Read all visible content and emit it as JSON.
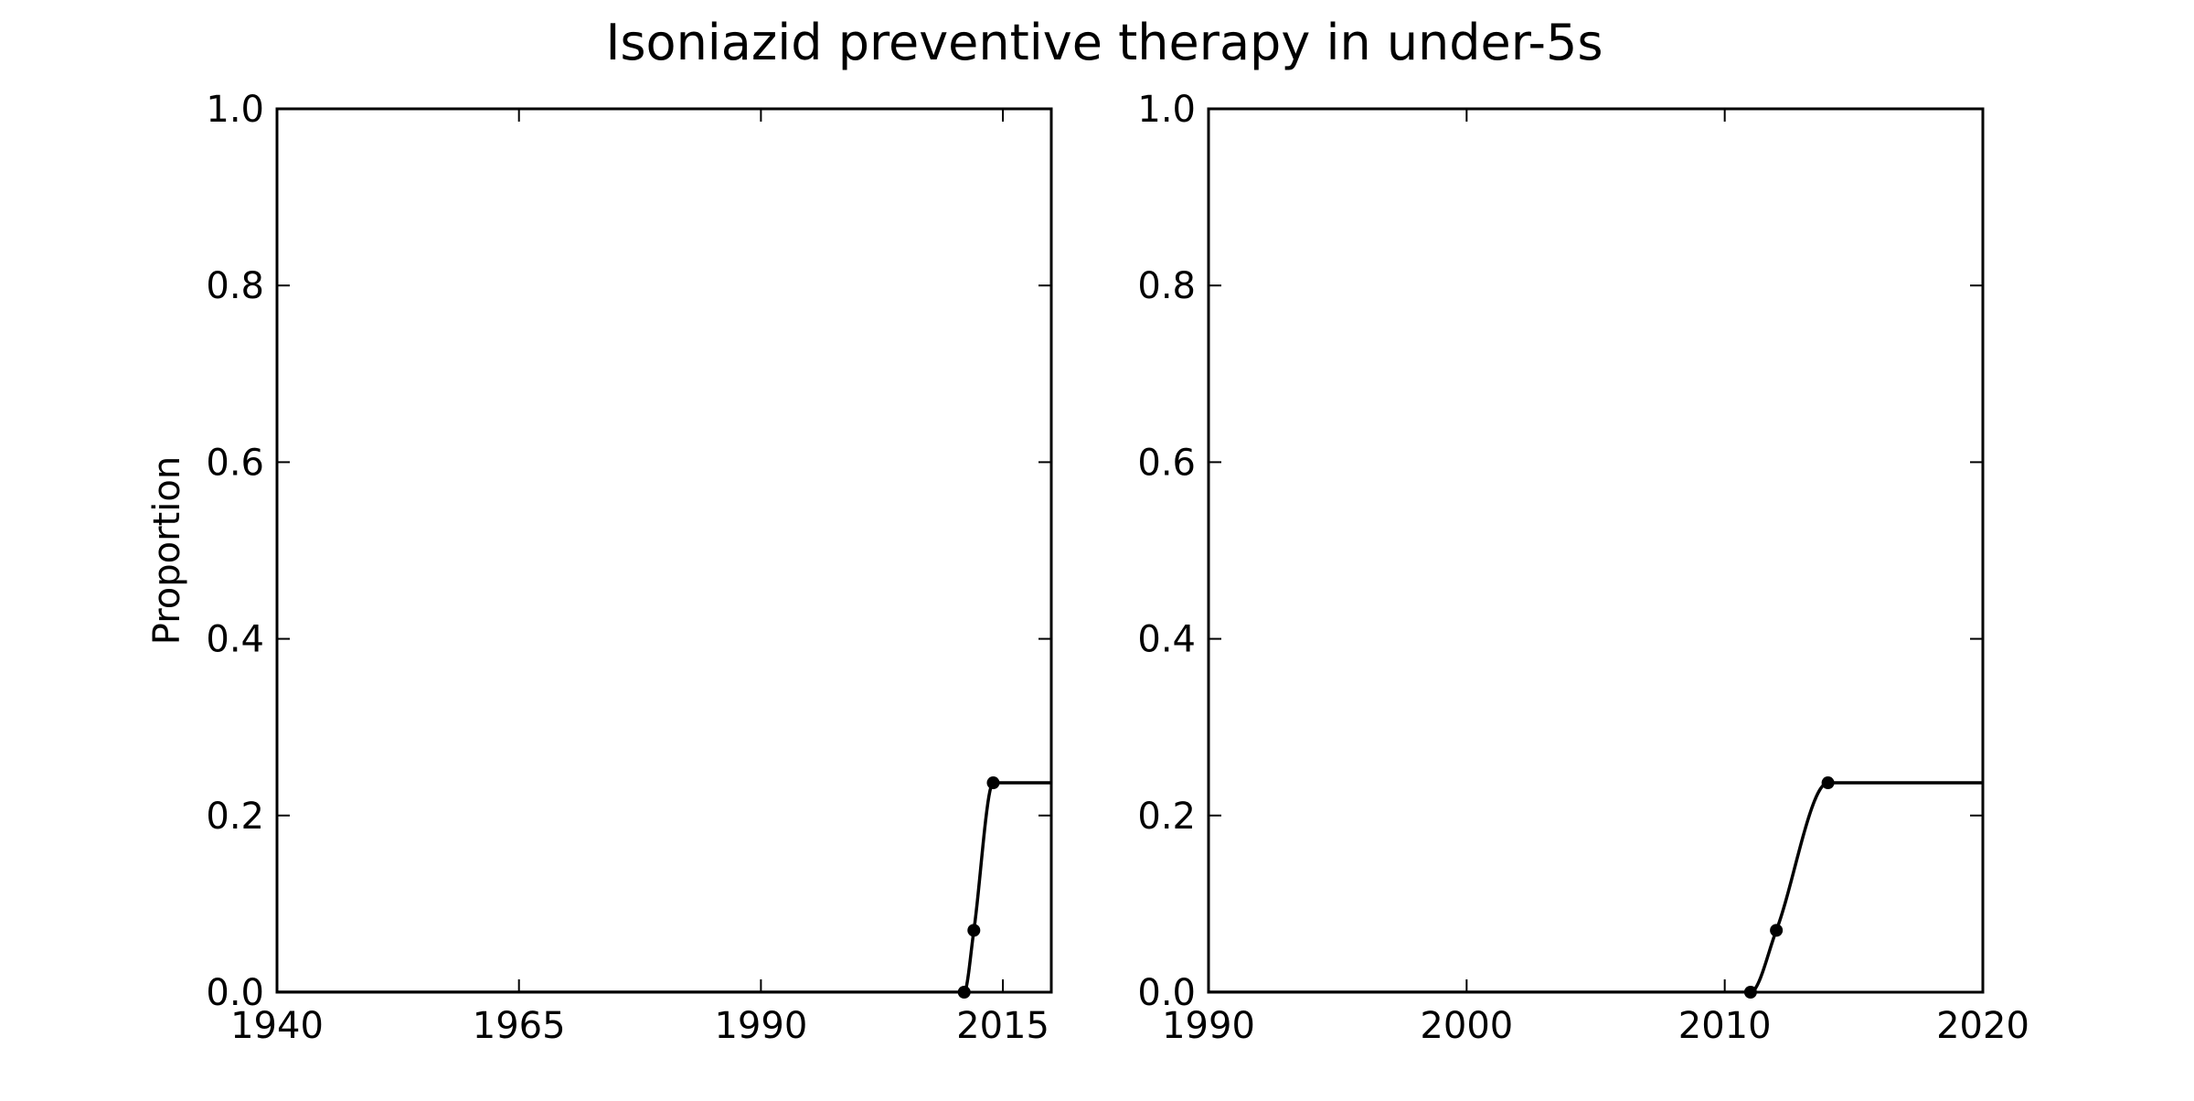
{
  "title": "Isoniazid preventive therapy in under-5s",
  "colors": {
    "line": "#000000",
    "axes": "#000000",
    "background": "#ffffff"
  },
  "chart_data": [
    {
      "type": "line",
      "title": "",
      "xlabel": "",
      "ylabel": "Proportion",
      "xlim": [
        1940,
        2020
      ],
      "ylim": [
        0,
        1
      ],
      "xticks": [
        "1940",
        "1965",
        "1990",
        "2015"
      ],
      "xtick_values": [
        1940,
        1965,
        1990,
        2015
      ],
      "yticks": [
        "0.0",
        "0.2",
        "0.4",
        "0.6",
        "0.8",
        "1.0"
      ],
      "ytick_values": [
        0,
        0.2,
        0.4,
        0.6,
        0.8,
        1.0
      ],
      "grid": false,
      "series": [
        {
          "points": [
            [
              2011,
              0.0
            ],
            [
              2012,
              0.07
            ],
            [
              2014,
              0.237
            ]
          ],
          "curve": [
            [
              1940,
              0.0
            ],
            [
              2011,
              0.0
            ],
            [
              2012,
              0.07
            ],
            [
              2014,
              0.237
            ],
            [
              2020,
              0.237
            ]
          ]
        }
      ]
    },
    {
      "type": "line",
      "title": "",
      "xlabel": "",
      "ylabel": "",
      "xlim": [
        1990,
        2020
      ],
      "ylim": [
        0,
        1
      ],
      "xticks": [
        "1990",
        "2000",
        "2010",
        "2020"
      ],
      "xtick_values": [
        1990,
        2000,
        2010,
        2020
      ],
      "yticks": [
        "0.0",
        "0.2",
        "0.4",
        "0.6",
        "0.8",
        "1.0"
      ],
      "ytick_values": [
        0,
        0.2,
        0.4,
        0.6,
        0.8,
        1.0
      ],
      "grid": false,
      "series": [
        {
          "points": [
            [
              2011,
              0.0
            ],
            [
              2012,
              0.07
            ],
            [
              2014,
              0.237
            ]
          ],
          "curve": [
            [
              1990,
              0.0
            ],
            [
              2011,
              0.0
            ],
            [
              2012,
              0.07
            ],
            [
              2014,
              0.237
            ],
            [
              2020,
              0.237
            ]
          ]
        }
      ]
    }
  ]
}
